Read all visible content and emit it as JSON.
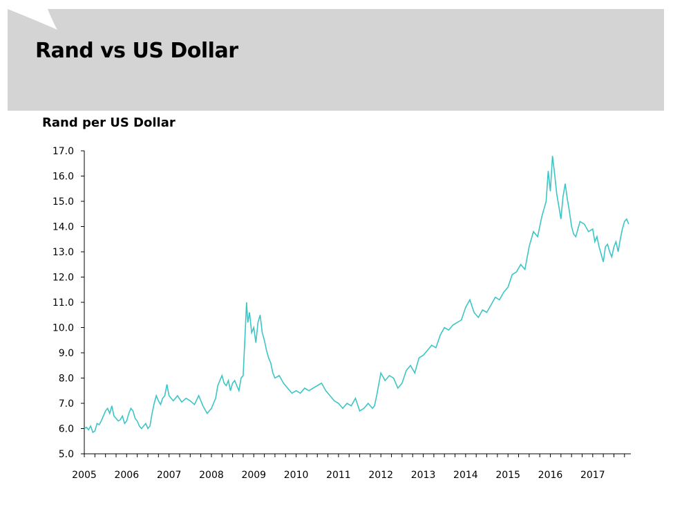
{
  "slide": {
    "title": "Rand vs US Dollar"
  },
  "colors": {
    "header_band": "#d4d4d4",
    "line": "#3cc5c5",
    "axis": "#000000"
  },
  "chart_data": {
    "type": "line",
    "title": "Rand vs US Dollar",
    "xlabel": "",
    "ylabel": "Rand per US Dollar",
    "ylim": [
      5.0,
      17.0
    ],
    "xlim": [
      2005.0,
      2017.9
    ],
    "yticks": [
      "5.0",
      "6.0",
      "7.0",
      "8.0",
      "9.0",
      "10.0",
      "11.0",
      "12.0",
      "13.0",
      "14.0",
      "15.0",
      "16.0",
      "17.0"
    ],
    "xticks": [
      "2005",
      "2006",
      "2007",
      "2008",
      "2009",
      "2010",
      "2011",
      "2012",
      "2013",
      "2014",
      "2015",
      "2016",
      "2017"
    ],
    "grid": false,
    "legend": "none",
    "series": [
      {
        "x": [
          2005.0,
          2005.05,
          2005.1,
          2005.15,
          2005.2,
          2005.25,
          2005.3,
          2005.35,
          2005.4,
          2005.45,
          2005.5,
          2005.55,
          2005.6,
          2005.65,
          2005.7,
          2005.75,
          2005.8,
          2005.85,
          2005.9,
          2005.95,
          2006.0,
          2006.05,
          2006.1,
          2006.15,
          2006.2,
          2006.25,
          2006.3,
          2006.35,
          2006.4,
          2006.45,
          2006.5,
          2006.55,
          2006.6,
          2006.65,
          2006.7,
          2006.75,
          2006.8,
          2006.85,
          2006.9,
          2006.95,
          2007.0,
          2007.1,
          2007.2,
          2007.3,
          2007.4,
          2007.5,
          2007.6,
          2007.7,
          2007.8,
          2007.9,
          2008.0,
          2008.05,
          2008.1,
          2008.15,
          2008.2,
          2008.25,
          2008.3,
          2008.35,
          2008.4,
          2008.45,
          2008.5,
          2008.55,
          2008.6,
          2008.65,
          2008.7,
          2008.75,
          2008.78,
          2008.8,
          2008.83,
          2008.86,
          2008.9,
          2008.95,
          2009.0,
          2009.05,
          2009.1,
          2009.15,
          2009.2,
          2009.25,
          2009.3,
          2009.35,
          2009.4,
          2009.45,
          2009.5,
          2009.6,
          2009.7,
          2009.8,
          2009.9,
          2010.0,
          2010.1,
          2010.2,
          2010.3,
          2010.4,
          2010.5,
          2010.6,
          2010.7,
          2010.8,
          2010.9,
          2011.0,
          2011.1,
          2011.2,
          2011.3,
          2011.4,
          2011.5,
          2011.6,
          2011.65,
          2011.7,
          2011.75,
          2011.8,
          2011.85,
          2011.9,
          2012.0,
          2012.1,
          2012.2,
          2012.3,
          2012.4,
          2012.5,
          2012.6,
          2012.7,
          2012.8,
          2012.9,
          2013.0,
          2013.1,
          2013.2,
          2013.3,
          2013.4,
          2013.5,
          2013.6,
          2013.7,
          2013.8,
          2013.9,
          2014.0,
          2014.1,
          2014.2,
          2014.3,
          2014.4,
          2014.5,
          2014.6,
          2014.7,
          2014.8,
          2014.9,
          2015.0,
          2015.1,
          2015.2,
          2015.3,
          2015.4,
          2015.5,
          2015.6,
          2015.7,
          2015.8,
          2015.9,
          2015.95,
          2016.0,
          2016.05,
          2016.1,
          2016.15,
          2016.2,
          2016.25,
          2016.3,
          2016.35,
          2016.4,
          2016.45,
          2016.5,
          2016.55,
          2016.6,
          2016.7,
          2016.8,
          2016.9,
          2017.0,
          2017.05,
          2017.1,
          2017.15,
          2017.2,
          2017.25,
          2017.3,
          2017.35,
          2017.4,
          2017.45,
          2017.5,
          2017.55,
          2017.6,
          2017.65,
          2017.7,
          2017.75,
          2017.8,
          2017.85
        ],
        "values": [
          6.0,
          6.05,
          5.95,
          6.1,
          5.85,
          5.9,
          6.2,
          6.15,
          6.3,
          6.5,
          6.7,
          6.8,
          6.6,
          6.9,
          6.5,
          6.4,
          6.3,
          6.35,
          6.5,
          6.2,
          6.3,
          6.6,
          6.8,
          6.7,
          6.4,
          6.3,
          6.1,
          6.0,
          6.1,
          6.2,
          6.0,
          6.1,
          6.6,
          7.0,
          7.3,
          7.1,
          6.95,
          7.2,
          7.3,
          7.75,
          7.3,
          7.1,
          7.3,
          7.05,
          7.2,
          7.1,
          6.95,
          7.3,
          6.9,
          6.6,
          6.8,
          7.0,
          7.2,
          7.7,
          7.9,
          8.1,
          7.8,
          7.7,
          7.9,
          7.5,
          7.8,
          7.9,
          7.7,
          7.5,
          8.0,
          8.1,
          9.2,
          9.9,
          11.0,
          10.2,
          10.6,
          9.8,
          10.0,
          9.4,
          10.2,
          10.5,
          9.8,
          9.5,
          9.1,
          8.8,
          8.6,
          8.2,
          8.0,
          8.1,
          7.8,
          7.6,
          7.4,
          7.5,
          7.4,
          7.6,
          7.5,
          7.6,
          7.7,
          7.8,
          7.5,
          7.3,
          7.1,
          7.0,
          6.8,
          7.0,
          6.9,
          7.2,
          6.7,
          6.8,
          6.9,
          7.0,
          6.9,
          6.8,
          6.9,
          7.3,
          8.2,
          7.9,
          8.1,
          8.0,
          7.6,
          7.8,
          8.3,
          8.5,
          8.2,
          8.8,
          8.9,
          9.1,
          9.3,
          9.2,
          9.7,
          10.0,
          9.9,
          10.1,
          10.2,
          10.3,
          10.8,
          11.1,
          10.6,
          10.4,
          10.7,
          10.6,
          10.9,
          11.2,
          11.1,
          11.4,
          11.6,
          12.1,
          12.2,
          12.5,
          12.3,
          13.2,
          13.8,
          13.6,
          14.4,
          15.0,
          16.2,
          15.4,
          16.8,
          16.1,
          15.3,
          14.8,
          14.3,
          15.2,
          15.7,
          15.1,
          14.6,
          14.0,
          13.7,
          13.6,
          14.2,
          14.1,
          13.8,
          13.9,
          13.4,
          13.6,
          13.2,
          12.9,
          12.6,
          13.2,
          13.3,
          13.0,
          12.8,
          13.2,
          13.4,
          13.0,
          13.5,
          13.9,
          14.2,
          14.3,
          14.1
        ]
      }
    ]
  }
}
